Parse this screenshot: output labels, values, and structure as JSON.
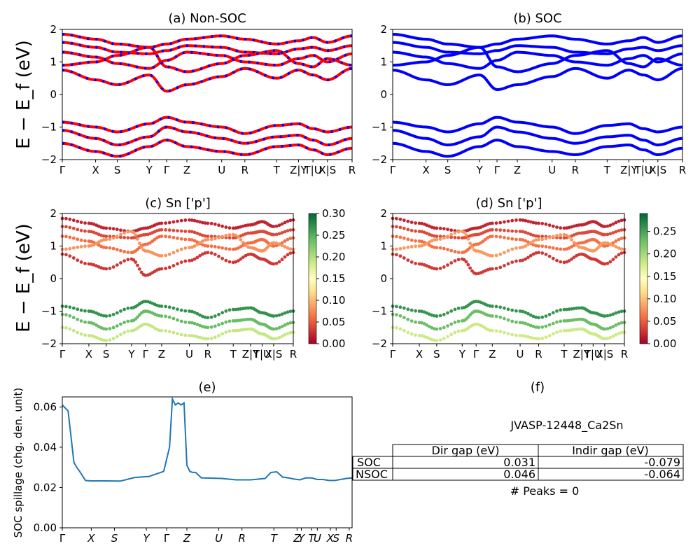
{
  "chart_data": [
    {
      "panel": "a",
      "type": "line",
      "title": "(a) Non-SOC",
      "ylabel": "E − E_f (eV)",
      "ylim": [
        -2,
        2
      ],
      "yticks": [
        "2",
        "1",
        "0",
        "−1",
        "−2"
      ],
      "kpath": [
        "Γ",
        "X",
        "S",
        "Y",
        "Γ",
        "Z",
        "U",
        "R",
        "T",
        "Z|Y",
        "T|U",
        "X|S",
        "R"
      ],
      "series": [
        {
          "color": "#ff0000",
          "dash_color": "#0000ff",
          "bands": [
            [
              1.85,
              1.7,
              1.55,
              1.45,
              1.55,
              1.7,
              1.8,
              1.7,
              1.55,
              1.65,
              1.75,
              1.6,
              1.8
            ],
            [
              1.6,
              1.45,
              1.3,
              1.25,
              1.35,
              1.5,
              1.45,
              1.3,
              1.25,
              1.4,
              1.45,
              1.35,
              1.5
            ],
            [
              1.3,
              1.15,
              0.95,
              0.8,
              1.05,
              1.3,
              1.2,
              1.0,
              0.9,
              1.1,
              1.2,
              1.0,
              1.25
            ],
            [
              0.9,
              1.0,
              1.2,
              1.45,
              0.85,
              0.7,
              0.95,
              1.2,
              1.35,
              0.95,
              0.85,
              1.1,
              0.9
            ],
            [
              0.75,
              0.45,
              0.3,
              0.6,
              0.1,
              0.3,
              0.55,
              0.8,
              0.5,
              0.75,
              0.6,
              0.45,
              0.8
            ],
            [
              -0.85,
              -1.0,
              -1.15,
              -0.9,
              -0.7,
              -0.85,
              -1.0,
              -1.2,
              -0.95,
              -0.9,
              -1.05,
              -1.15,
              -1.0
            ],
            [
              -1.1,
              -1.35,
              -1.55,
              -1.3,
              -1.0,
              -1.15,
              -1.35,
              -1.5,
              -1.3,
              -1.25,
              -1.4,
              -1.55,
              -1.35
            ],
            [
              -1.5,
              -1.75,
              -1.9,
              -1.6,
              -1.4,
              -1.6,
              -1.75,
              -1.85,
              -1.6,
              -1.55,
              -1.7,
              -1.85,
              -1.65
            ]
          ]
        }
      ]
    },
    {
      "panel": "b",
      "type": "line",
      "title": "(b) SOC",
      "ylim": [
        -2,
        2
      ],
      "yticks": [
        "2",
        "1",
        "0",
        "−1",
        "−2"
      ],
      "kpath": [
        "Γ",
        "X",
        "S",
        "Y",
        "Γ",
        "Z",
        "U",
        "R",
        "T",
        "Z|Y",
        "T|U",
        "X|S",
        "R"
      ],
      "series": [
        {
          "color": "#0000ff",
          "bands": [
            [
              1.85,
              1.7,
              1.55,
              1.45,
              1.55,
              1.7,
              1.8,
              1.7,
              1.55,
              1.65,
              1.75,
              1.6,
              1.8
            ],
            [
              1.6,
              1.45,
              1.3,
              1.25,
              1.35,
              1.5,
              1.45,
              1.3,
              1.25,
              1.4,
              1.45,
              1.35,
              1.5
            ],
            [
              1.3,
              1.15,
              0.95,
              0.8,
              1.05,
              1.3,
              1.2,
              1.0,
              0.9,
              1.1,
              1.2,
              1.0,
              1.25
            ],
            [
              0.9,
              1.0,
              1.2,
              1.45,
              0.85,
              0.7,
              0.95,
              1.2,
              1.35,
              0.95,
              0.85,
              1.1,
              0.9
            ],
            [
              0.75,
              0.45,
              0.3,
              0.6,
              0.15,
              0.3,
              0.55,
              0.8,
              0.5,
              0.75,
              0.6,
              0.45,
              0.8
            ],
            [
              -0.85,
              -1.0,
              -1.15,
              -0.9,
              -0.7,
              -0.85,
              -1.0,
              -1.2,
              -0.95,
              -0.9,
              -1.05,
              -1.15,
              -1.0
            ],
            [
              -1.1,
              -1.35,
              -1.55,
              -1.3,
              -1.0,
              -1.15,
              -1.35,
              -1.5,
              -1.3,
              -1.25,
              -1.4,
              -1.55,
              -1.35
            ],
            [
              -1.5,
              -1.75,
              -1.9,
              -1.6,
              -1.4,
              -1.6,
              -1.75,
              -1.85,
              -1.6,
              -1.55,
              -1.7,
              -1.85,
              -1.65
            ]
          ]
        }
      ]
    },
    {
      "panel": "c",
      "type": "scatter",
      "title": "(c)  Sn ['p']",
      "ylabel": "E − E_f (eV)",
      "ylim": [
        -2,
        2
      ],
      "yticks": [
        "2",
        "1",
        "0",
        "−1",
        "−2"
      ],
      "kpath": [
        "Γ",
        "X",
        "S",
        "Y",
        "Γ",
        "Z",
        "U",
        "R",
        "T",
        "Z|Y",
        "T|U",
        "X|S",
        "R"
      ],
      "colorbar": {
        "min": 0.0,
        "max": 0.3,
        "ticks": [
          "0.30",
          "0.25",
          "0.20",
          "0.15",
          "0.10",
          "0.05",
          "0.00"
        ]
      },
      "bands": [
        {
          "weight": 0.02,
          "e": [
            1.85,
            1.7,
            1.55,
            1.45,
            1.55,
            1.7,
            1.8,
            1.7,
            1.55,
            1.65,
            1.75,
            1.6,
            1.8
          ]
        },
        {
          "weight": 0.04,
          "e": [
            1.6,
            1.45,
            1.3,
            1.25,
            1.35,
            1.5,
            1.45,
            1.3,
            1.25,
            1.4,
            1.45,
            1.35,
            1.5
          ]
        },
        {
          "weight": 0.06,
          "e": [
            1.3,
            1.15,
            0.95,
            0.8,
            1.05,
            1.3,
            1.2,
            1.0,
            0.9,
            1.1,
            1.2,
            1.0,
            1.25
          ]
        },
        {
          "weight": 0.08,
          "e": [
            0.9,
            1.0,
            1.2,
            1.45,
            0.85,
            0.7,
            0.95,
            1.2,
            1.35,
            0.95,
            0.85,
            1.1,
            0.9
          ]
        },
        {
          "weight": 0.03,
          "e": [
            0.75,
            0.45,
            0.3,
            0.6,
            0.1,
            0.3,
            0.55,
            0.8,
            0.5,
            0.75,
            0.6,
            0.45,
            0.8
          ]
        },
        {
          "weight": 0.27,
          "e": [
            -0.85,
            -1.0,
            -1.15,
            -0.9,
            -0.7,
            -0.85,
            -1.0,
            -1.2,
            -0.95,
            -0.9,
            -1.05,
            -1.15,
            -1.0
          ]
        },
        {
          "weight": 0.24,
          "e": [
            -1.1,
            -1.35,
            -1.55,
            -1.3,
            -1.0,
            -1.15,
            -1.35,
            -1.5,
            -1.3,
            -1.25,
            -1.4,
            -1.55,
            -1.35
          ]
        },
        {
          "weight": 0.19,
          "e": [
            -1.5,
            -1.75,
            -1.9,
            -1.6,
            -1.4,
            -1.6,
            -1.75,
            -1.85,
            -1.6,
            -1.55,
            -1.7,
            -1.85,
            -1.65
          ]
        }
      ]
    },
    {
      "panel": "d",
      "type": "scatter",
      "title": "(d) Sn ['p']",
      "ylim": [
        -2,
        2
      ],
      "yticks": [
        "2",
        "1",
        "0",
        "−1",
        "−2"
      ],
      "kpath": [
        "Γ",
        "X",
        "S",
        "Y",
        "Γ",
        "Z",
        "U",
        "R",
        "T",
        "Z|Y",
        "T|U",
        "X|S",
        "R"
      ],
      "colorbar": {
        "min": 0.0,
        "max": 0.29,
        "ticks": [
          "0.25",
          "0.20",
          "0.15",
          "0.10",
          "0.05",
          "0.00"
        ]
      },
      "bands": [
        {
          "weight": 0.02,
          "e": [
            1.85,
            1.7,
            1.55,
            1.45,
            1.55,
            1.7,
            1.8,
            1.7,
            1.55,
            1.65,
            1.75,
            1.6,
            1.8
          ]
        },
        {
          "weight": 0.04,
          "e": [
            1.6,
            1.45,
            1.3,
            1.25,
            1.35,
            1.5,
            1.45,
            1.3,
            1.25,
            1.4,
            1.45,
            1.35,
            1.5
          ]
        },
        {
          "weight": 0.06,
          "e": [
            1.3,
            1.15,
            0.95,
            0.8,
            1.05,
            1.3,
            1.2,
            1.0,
            0.9,
            1.1,
            1.2,
            1.0,
            1.25
          ]
        },
        {
          "weight": 0.08,
          "e": [
            0.9,
            1.0,
            1.2,
            1.45,
            0.85,
            0.7,
            0.95,
            1.2,
            1.35,
            0.95,
            0.85,
            1.1,
            0.9
          ]
        },
        {
          "weight": 0.03,
          "e": [
            0.75,
            0.45,
            0.3,
            0.6,
            0.15,
            0.3,
            0.55,
            0.8,
            0.5,
            0.75,
            0.6,
            0.45,
            0.8
          ]
        },
        {
          "weight": 0.26,
          "e": [
            -0.85,
            -1.0,
            -1.15,
            -0.9,
            -0.7,
            -0.85,
            -1.0,
            -1.2,
            -0.95,
            -0.9,
            -1.05,
            -1.15,
            -1.0
          ]
        },
        {
          "weight": 0.23,
          "e": [
            -1.1,
            -1.35,
            -1.55,
            -1.3,
            -1.0,
            -1.15,
            -1.35,
            -1.5,
            -1.3,
            -1.25,
            -1.4,
            -1.55,
            -1.35
          ]
        },
        {
          "weight": 0.18,
          "e": [
            -1.5,
            -1.75,
            -1.9,
            -1.6,
            -1.4,
            -1.6,
            -1.75,
            -1.85,
            -1.6,
            -1.55,
            -1.7,
            -1.85,
            -1.65
          ]
        }
      ]
    },
    {
      "panel": "e",
      "type": "line",
      "title": "(e)",
      "ylabel": "SOC spillage (chg. den. unit)",
      "ylim": [
        0.0,
        0.065
      ],
      "yticks": [
        "0.06",
        "0.04",
        "0.02",
        "0.00"
      ],
      "xticks": [
        "Γ",
        "X",
        "S",
        "Y",
        "Γ",
        "Z",
        "U",
        "R",
        "T",
        "Z",
        "Y",
        "T",
        "U",
        "X",
        "S",
        "R"
      ],
      "color": "#1f77b4",
      "x": [
        0,
        2,
        4,
        5,
        6,
        8,
        10,
        15,
        20,
        25,
        30,
        35,
        37,
        38,
        39,
        40,
        41,
        42,
        43,
        44,
        45,
        46,
        48,
        50,
        55,
        60,
        65,
        70,
        72,
        74,
        76,
        78,
        80,
        82,
        84,
        86,
        88,
        90,
        92,
        94,
        96,
        98,
        100
      ],
      "y": [
        0.061,
        0.058,
        0.0325,
        0.03,
        0.028,
        0.0235,
        0.0233,
        0.0233,
        0.0232,
        0.025,
        0.0255,
        0.028,
        0.04,
        0.064,
        0.061,
        0.062,
        0.061,
        0.062,
        0.031,
        0.028,
        0.0275,
        0.0275,
        0.0248,
        0.0247,
        0.0245,
        0.0238,
        0.0238,
        0.0245,
        0.0275,
        0.0278,
        0.0252,
        0.0248,
        0.0242,
        0.0238,
        0.0248,
        0.0248,
        0.024,
        0.024,
        0.0235,
        0.0235,
        0.024,
        0.0245,
        0.0248
      ]
    },
    {
      "panel": "f",
      "type": "table",
      "title": "(f)",
      "material": "JVASP-12448_Ca2Sn",
      "columns": [
        "Dir gap (eV)",
        "Indir gap (eV)"
      ],
      "rows": [
        {
          "label": "SOC",
          "dir": "0.031",
          "indir": "-0.079"
        },
        {
          "label": "NSOC",
          "dir": "0.046",
          "indir": "-0.064"
        }
      ],
      "peaks_text": "# Peaks = 0"
    }
  ]
}
